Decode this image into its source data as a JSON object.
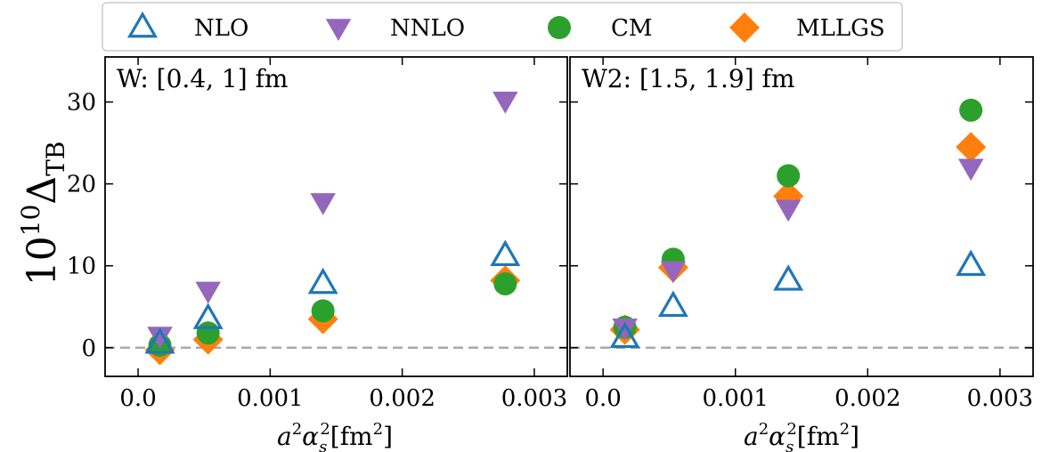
{
  "legend": [
    {
      "key": "nlo",
      "label": "NLO",
      "marker": "triangle-up-open",
      "color": "#1f77b4"
    },
    {
      "key": "nnlo",
      "label": "NNLO",
      "marker": "triangle-down",
      "color": "#9467bd"
    },
    {
      "key": "cm",
      "label": "CM",
      "marker": "circle",
      "color": "#2ca02c"
    },
    {
      "key": "mllgs",
      "label": "MLLGS",
      "marker": "diamond",
      "color": "#ff7f0e"
    }
  ],
  "ylabel": {
    "base": "10",
    "exp": "10",
    "delta": "Δ",
    "sub": "TB"
  },
  "xlabel": {
    "a": "a",
    "a_exp": "2",
    "alpha": "α",
    "alpha_sub": "s",
    "alpha_exp": "2",
    "unit_open": "[fm",
    "unit_exp": "2",
    "unit_close": "]"
  },
  "chart_data": [
    {
      "type": "scatter",
      "panel_label": "W: [0.4, 1] fm",
      "xlim": [
        -0.00025,
        0.00325
      ],
      "ylim": [
        -3.5,
        35.5
      ],
      "x_ticks": [
        0.0,
        0.001,
        0.002,
        0.003
      ],
      "x_tick_labels": [
        "0.0",
        "0.001",
        "0.002",
        "0.003"
      ],
      "y_ticks": [
        0,
        10,
        20,
        30
      ],
      "y_tick_labels": [
        "0",
        "10",
        "20",
        "30"
      ],
      "reference_line_y": 0,
      "x": [
        0.000165,
        0.00053,
        0.0014,
        0.00278
      ],
      "series": [
        {
          "key": "nlo",
          "values": [
            0.5,
            3.5,
            7.8,
            11.2
          ]
        },
        {
          "key": "nnlo",
          "values": [
            1.5,
            7.0,
            17.8,
            30.2
          ]
        },
        {
          "key": "cm",
          "values": [
            0.3,
            1.8,
            4.5,
            7.8
          ]
        },
        {
          "key": "mllgs",
          "values": [
            -0.3,
            1.0,
            3.5,
            8.2
          ]
        }
      ]
    },
    {
      "type": "scatter",
      "panel_label": "W2: [1.5, 1.9] fm",
      "xlim": [
        -0.00025,
        0.00325
      ],
      "ylim": [
        -3.5,
        35.5
      ],
      "x_ticks": [
        0.0,
        0.001,
        0.002,
        0.003
      ],
      "x_tick_labels": [
        "0.0",
        "0.001",
        "0.002",
        "0.003"
      ],
      "y_ticks": [
        0,
        10,
        20,
        30
      ],
      "y_tick_labels": [
        "",
        "",
        "",
        ""
      ],
      "reference_line_y": 0,
      "x": [
        0.000165,
        0.00053,
        0.0014,
        0.00278
      ],
      "series": [
        {
          "key": "nlo",
          "values": [
            1.2,
            5.0,
            8.2,
            10.0
          ]
        },
        {
          "key": "nnlo",
          "values": [
            2.5,
            9.5,
            17.0,
            22.0
          ]
        },
        {
          "key": "cm",
          "values": [
            2.5,
            10.8,
            21.0,
            29.0
          ]
        },
        {
          "key": "mllgs",
          "values": [
            2.2,
            9.8,
            18.5,
            24.5
          ]
        }
      ]
    }
  ]
}
